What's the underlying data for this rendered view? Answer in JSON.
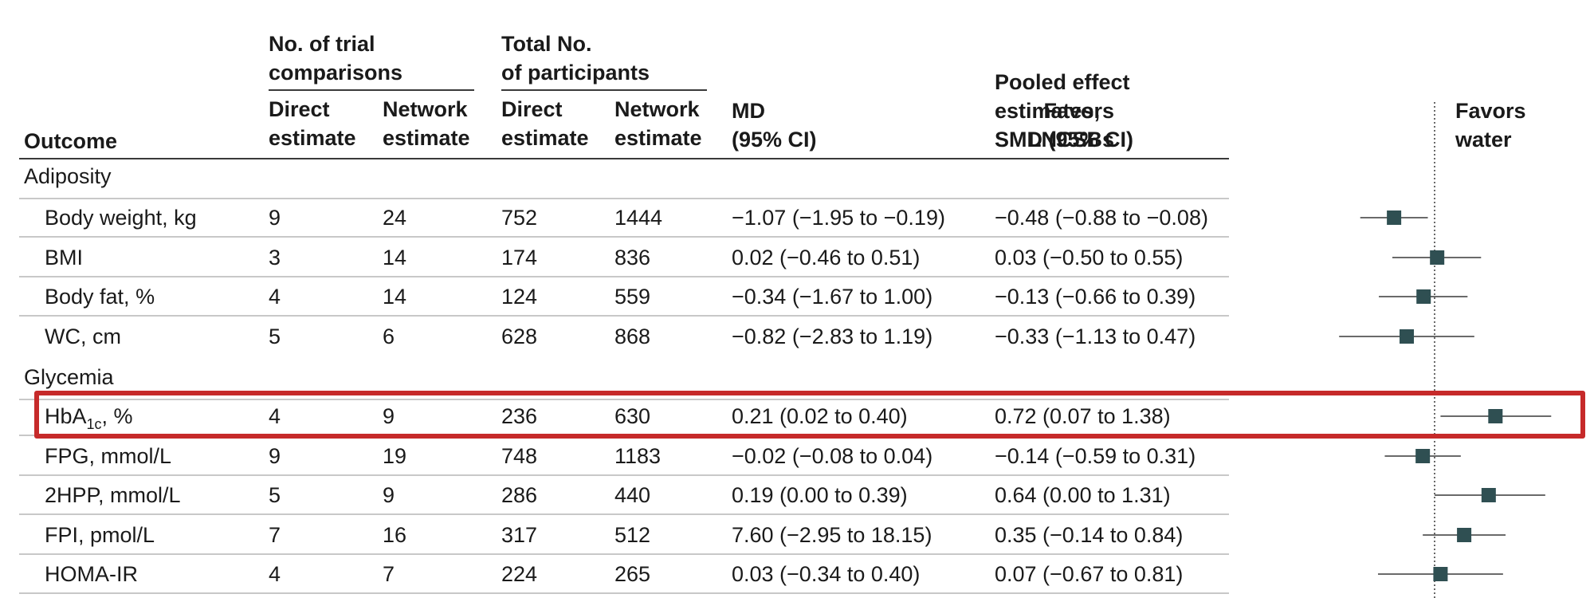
{
  "header": {
    "outcome": "Outcome",
    "trial_group": [
      "No. of trial",
      "comparisons"
    ],
    "participants_group": [
      "Total No.",
      "of participants"
    ],
    "direct": [
      "Direct",
      "estimate"
    ],
    "network": [
      "Network",
      "estimate"
    ],
    "md": [
      "MD",
      "(95% CI)"
    ],
    "smd": [
      "Pooled effect",
      "estimates,",
      "SMD (95% CI)"
    ],
    "favors_left": [
      "Favors",
      "LNCSBs"
    ],
    "favors_right": [
      "Favors",
      "water"
    ]
  },
  "sections": [
    {
      "title": "Adiposity",
      "rows": [
        {
          "outcome": "Body weight, kg",
          "sub": "",
          "suffix": "",
          "trial_direct": "9",
          "trial_network": "24",
          "part_direct": "752",
          "part_network": "1444",
          "md": "−1.07 (−1.95 to −0.19)",
          "smd": "−0.48 (−0.88 to −0.08)"
        },
        {
          "outcome": "BMI",
          "sub": "",
          "suffix": "",
          "trial_direct": "3",
          "trial_network": "14",
          "part_direct": "174",
          "part_network": "836",
          "md": "0.02 (−0.46 to 0.51)",
          "smd": "0.03 (−0.50 to 0.55)"
        },
        {
          "outcome": "Body fat, %",
          "sub": "",
          "suffix": "",
          "trial_direct": "4",
          "trial_network": "14",
          "part_direct": "124",
          "part_network": "559",
          "md": "−0.34 (−1.67 to 1.00)",
          "smd": "−0.13 (−0.66 to 0.39)"
        },
        {
          "outcome": "WC, cm",
          "sub": "",
          "suffix": "",
          "trial_direct": "5",
          "trial_network": "6",
          "part_direct": "628",
          "part_network": "868",
          "md": "−0.82 (−2.83 to 1.19)",
          "smd": "−0.33 (−1.13 to 0.47)"
        }
      ]
    },
    {
      "title": "Glycemia",
      "rows": [
        {
          "outcome": "HbA",
          "sub": "1c",
          "suffix": ", %",
          "trial_direct": "4",
          "trial_network": "9",
          "part_direct": "236",
          "part_network": "630",
          "md": "0.21 (0.02 to 0.40)",
          "smd": "0.72 (0.07 to 1.38)"
        },
        {
          "outcome": "FPG, mmol/L",
          "sub": "",
          "suffix": "",
          "trial_direct": "9",
          "trial_network": "19",
          "part_direct": "748",
          "part_network": "1183",
          "md": "−0.02 (−0.08 to 0.04)",
          "smd": "−0.14 (−0.59 to 0.31)"
        },
        {
          "outcome": "2HPP, mmol/L",
          "sub": "",
          "suffix": "",
          "trial_direct": "5",
          "trial_network": "9",
          "part_direct": "286",
          "part_network": "440",
          "md": "0.19 (0.00 to 0.39)",
          "smd": "0.64 (0.00 to 1.31)"
        },
        {
          "outcome": "FPI, pmol/L",
          "sub": "",
          "suffix": "",
          "trial_direct": "7",
          "trial_network": "16",
          "part_direct": "317",
          "part_network": "512",
          "md": "7.60 (−2.95 to 18.15)",
          "smd": "0.35 (−0.14 to 0.84)"
        },
        {
          "outcome": "HOMA-IR",
          "sub": "",
          "suffix": "",
          "trial_direct": "4",
          "trial_network": "7",
          "part_direct": "224",
          "part_network": "265",
          "md": "0.03 (−0.34 to 0.40)",
          "smd": "0.07 (−0.67 to 0.81)"
        }
      ]
    }
  ],
  "chart_data": {
    "type": "scatter",
    "points": [
      {
        "y": 0,
        "x": -0.48,
        "lo": -0.88,
        "hi": -0.08
      },
      {
        "y": 1,
        "x": 0.03,
        "lo": -0.5,
        "hi": 0.55
      },
      {
        "y": 2,
        "x": -0.13,
        "lo": -0.66,
        "hi": 0.39
      },
      {
        "y": 3,
        "x": -0.33,
        "lo": -1.13,
        "hi": 0.47
      },
      {
        "y": 4,
        "x": 0.72,
        "lo": 0.07,
        "hi": 1.38
      },
      {
        "y": 5,
        "x": -0.14,
        "lo": -0.59,
        "hi": 0.31
      },
      {
        "y": 6,
        "x": 0.64,
        "lo": 0.0,
        "hi": 1.31
      },
      {
        "y": 7,
        "x": 0.35,
        "lo": -0.14,
        "hi": 0.84
      },
      {
        "y": 8,
        "x": 0.07,
        "lo": -0.67,
        "hi": 0.81
      }
    ],
    "reference_x": 0,
    "highlighted_row": 4,
    "marker_color": "#2f4f52",
    "line_color": "#555555"
  }
}
